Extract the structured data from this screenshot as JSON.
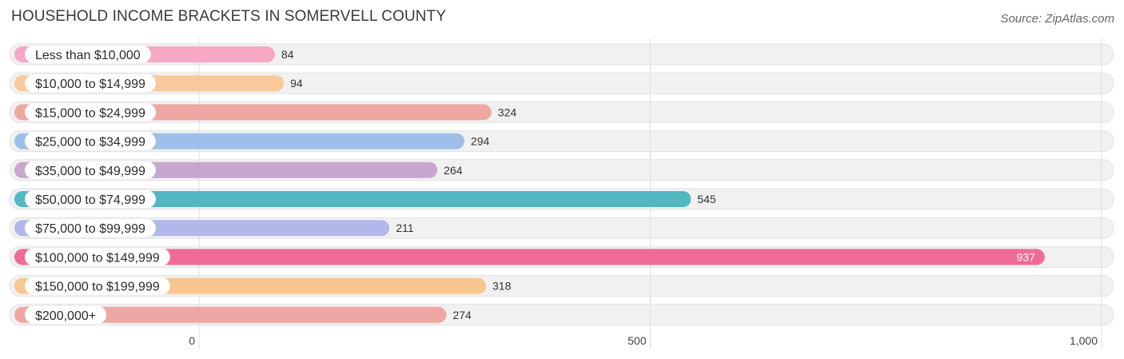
{
  "title": "HOUSEHOLD INCOME BRACKETS IN SOMERVELL COUNTY",
  "source": "Source: ZipAtlas.com",
  "chart_data": {
    "type": "bar",
    "orientation": "horizontal",
    "categories": [
      "Less than $10,000",
      "$10,000 to $14,999",
      "$15,000 to $24,999",
      "$25,000 to $34,999",
      "$35,000 to $49,999",
      "$50,000 to $74,999",
      "$75,000 to $99,999",
      "$100,000 to $149,999",
      "$150,000 to $199,999",
      "$200,000+"
    ],
    "values": [
      84,
      94,
      324,
      294,
      264,
      545,
      211,
      937,
      318,
      274
    ],
    "value_labels": [
      "84",
      "94",
      "324",
      "294",
      "264",
      "545",
      "211",
      "937",
      "318",
      "274"
    ],
    "colors": [
      "#f7a8c4",
      "#f9c99b",
      "#eea7a2",
      "#9dbfe8",
      "#c7a7cd",
      "#52b9c3",
      "#b3b8ea",
      "#f06b97",
      "#f9c68f",
      "#eea7a2"
    ],
    "xlim": [
      0,
      1000
    ],
    "xticks": [
      0,
      500,
      1000
    ],
    "xtick_labels": [
      "0",
      "500",
      "1,000"
    ],
    "grid": true,
    "legend": "none"
  }
}
